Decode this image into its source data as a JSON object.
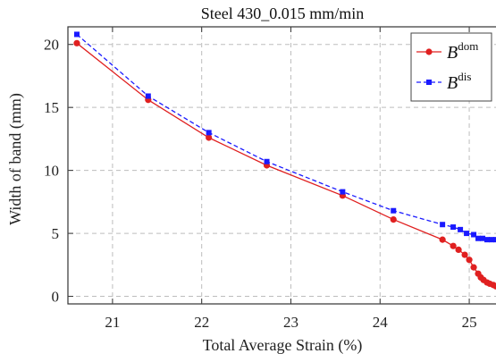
{
  "chart_data": {
    "type": "line",
    "title": "Steel 430_0.015 mm/min",
    "xlabel": "Total Average Strain (%)",
    "ylabel": "Width of band (mm)",
    "xlim": [
      20.5,
      25.3
    ],
    "ylim": [
      -0.6,
      21.4
    ],
    "xticks": [
      21,
      22,
      23,
      24,
      25
    ],
    "yticks": [
      0,
      5,
      10,
      15,
      20
    ],
    "grid": true,
    "legend_position": "top-right",
    "series": [
      {
        "name": "B",
        "name_superscript": "dom",
        "color": "#e02020",
        "marker": "circle",
        "line_style": "solid",
        "x": [
          20.6,
          21.4,
          22.08,
          22.73,
          23.58,
          24.15,
          24.7,
          24.82,
          24.88,
          24.95,
          25.0,
          25.05,
          25.1,
          25.13,
          25.16,
          25.2,
          25.23,
          25.27,
          25.3
        ],
        "y": [
          20.1,
          15.6,
          12.6,
          10.4,
          8.0,
          6.1,
          4.5,
          4.0,
          3.7,
          3.3,
          2.9,
          2.3,
          1.8,
          1.5,
          1.3,
          1.1,
          1.0,
          0.9,
          0.8
        ]
      },
      {
        "name": "B",
        "name_superscript": "dis",
        "color": "#1a1aff",
        "marker": "square",
        "line_style": "dashed",
        "x": [
          20.6,
          21.4,
          22.08,
          22.73,
          23.58,
          24.15,
          24.7,
          24.82,
          24.9,
          24.97,
          25.05,
          25.1,
          25.15,
          25.2,
          25.25,
          25.3
        ],
        "y": [
          20.8,
          15.9,
          13.0,
          10.7,
          8.3,
          6.8,
          5.7,
          5.5,
          5.3,
          5.0,
          4.9,
          4.6,
          4.6,
          4.5,
          4.5,
          4.5
        ]
      }
    ]
  }
}
